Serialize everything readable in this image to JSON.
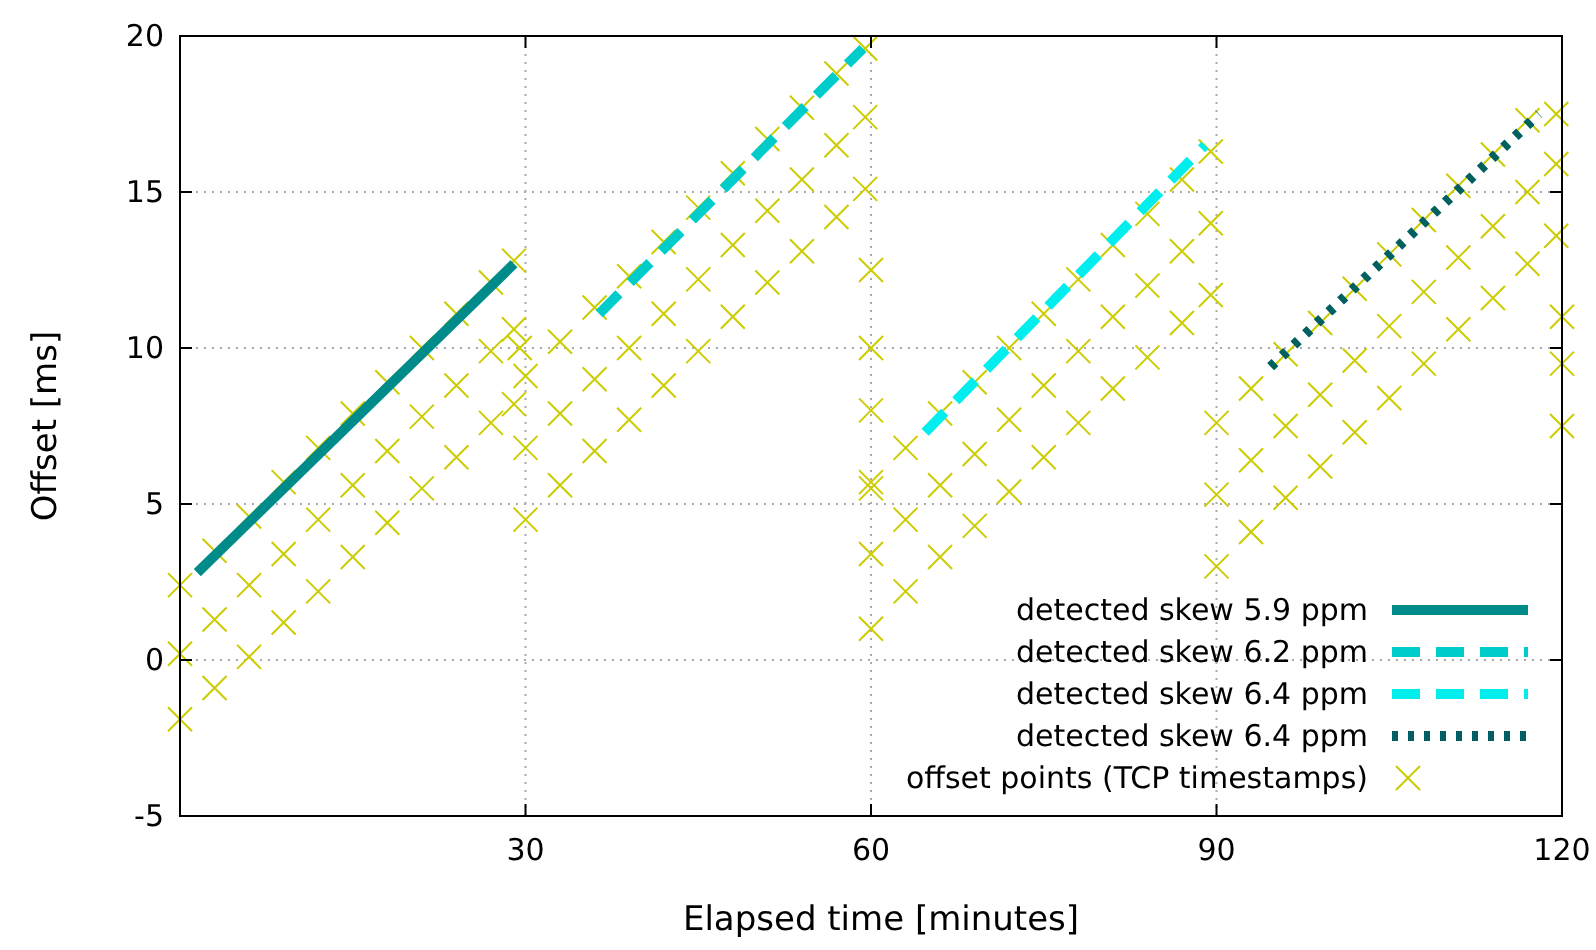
{
  "chart_data": {
    "type": "scatter",
    "xlabel": "Elapsed time [minutes]",
    "ylabel": "Offset [ms]",
    "xlim": [
      0,
      120
    ],
    "ylim": [
      -5,
      20
    ],
    "xticks": [
      30,
      60,
      90,
      120
    ],
    "yticks": [
      -5,
      0,
      5,
      10,
      15,
      20
    ],
    "grid": true,
    "legend": "bottom right",
    "series": [
      {
        "name": "detected skew 5.9 ppm",
        "type": "line",
        "color": "#008b8b",
        "line_style": "solid",
        "x": [
          1.5,
          29
        ],
        "values": [
          2.8,
          12.7
        ]
      },
      {
        "name": "detected skew 6.2 ppm",
        "type": "line",
        "color": "#00cccc",
        "line_style": "dashed",
        "x": [
          36.4,
          59.3
        ],
        "values": [
          11.1,
          19.6
        ]
      },
      {
        "name": "detected skew 6.4 ppm",
        "type": "line",
        "color": "#00eeee",
        "line_style": "dashed",
        "x": [
          64.7,
          89
        ],
        "values": [
          7.3,
          16.5
        ]
      },
      {
        "name": "detected skew 6.4 ppm",
        "type": "line",
        "color": "#005f5f",
        "line_style": "dotted",
        "x": [
          94.7,
          118
        ],
        "values": [
          9.4,
          17.5
        ]
      },
      {
        "name": "offset points (TCP timestamps)",
        "color": "#cccc00",
        "marker": "cross",
        "x": [
          0,
          0,
          0,
          3,
          3,
          3,
          6,
          6,
          6,
          9,
          9,
          9,
          12,
          12,
          12,
          15,
          15,
          15,
          18,
          18,
          18,
          21,
          21,
          21,
          24,
          24,
          24,
          27,
          27,
          27,
          29,
          29,
          29,
          29.5,
          30,
          30,
          30,
          33,
          33,
          33,
          36,
          36,
          36,
          39,
          39,
          39,
          42,
          42,
          42,
          45,
          45,
          45,
          48,
          48,
          48,
          51,
          51,
          51,
          54,
          54,
          54,
          57,
          57,
          57,
          59.5,
          59.5,
          59.5,
          60,
          60,
          60,
          60,
          60,
          60,
          60,
          63,
          63,
          63,
          66,
          66,
          66,
          69,
          69,
          69,
          72,
          72,
          72,
          75,
          75,
          75,
          78,
          78,
          78,
          81,
          81,
          81,
          84,
          84,
          84,
          87,
          87,
          87,
          89.5,
          89.5,
          89.5,
          90,
          90,
          90,
          93,
          93,
          93,
          96,
          96,
          96,
          99,
          99,
          99,
          102,
          102,
          102,
          105,
          105,
          105,
          108,
          108,
          108,
          111,
          111,
          111,
          114,
          114,
          114,
          117,
          117,
          117,
          119.5,
          119.5,
          119.5,
          120,
          120,
          120
        ],
        "values": [
          -1.9,
          0.2,
          2.4,
          -0.9,
          1.3,
          3.5,
          0.1,
          2.4,
          4.6,
          1.2,
          3.4,
          5.7,
          2.2,
          4.5,
          6.8,
          3.3,
          5.6,
          7.9,
          4.4,
          6.7,
          8.9,
          5.5,
          7.8,
          10.0,
          6.5,
          8.8,
          11.1,
          7.6,
          9.9,
          12.1,
          8.2,
          10.6,
          12.8,
          10.0,
          4.5,
          6.8,
          9.1,
          5.6,
          7.9,
          10.2,
          6.7,
          9.0,
          11.3,
          7.7,
          10.0,
          12.3,
          8.8,
          11.1,
          13.4,
          9.9,
          12.2,
          14.5,
          11.0,
          13.3,
          15.6,
          12.1,
          14.4,
          16.7,
          13.1,
          15.4,
          17.7,
          14.2,
          16.5,
          18.8,
          15.1,
          17.4,
          19.6,
          5.5,
          8.0,
          10.0,
          12.5,
          1.0,
          3.4,
          5.7,
          2.2,
          4.5,
          6.8,
          3.3,
          5.6,
          7.9,
          4.3,
          6.6,
          8.9,
          5.4,
          7.7,
          10.0,
          6.5,
          8.8,
          11.1,
          7.6,
          9.9,
          12.2,
          8.7,
          11.0,
          13.3,
          9.7,
          12.0,
          14.3,
          10.8,
          13.1,
          15.4,
          11.7,
          14.0,
          16.3,
          3.0,
          5.3,
          7.6,
          4.1,
          6.4,
          8.7,
          5.2,
          7.5,
          9.8,
          6.2,
          8.5,
          10.8,
          7.3,
          9.6,
          11.9,
          8.4,
          10.7,
          13.0,
          9.5,
          11.8,
          14.1,
          10.6,
          12.9,
          15.2,
          11.6,
          13.9,
          16.2,
          12.7,
          15.0,
          17.3,
          13.6,
          15.9,
          17.5,
          7.5,
          9.5,
          11.0
        ]
      }
    ]
  }
}
